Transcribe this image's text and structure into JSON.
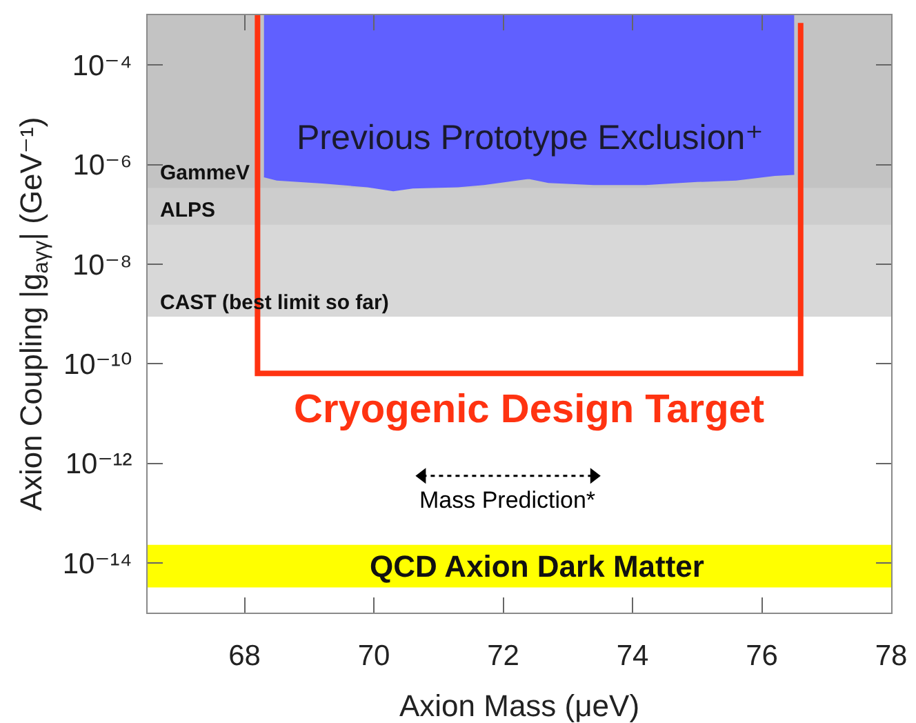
{
  "chart_data": {
    "type": "line",
    "xlabel": "Axion Mass (μeV)",
    "ylabel": "Axion Coupling |g$_{aγγ}$| (GeV⁻¹)",
    "xlim": [
      66.5,
      78
    ],
    "xticks": [
      68,
      70,
      72,
      74,
      76,
      78
    ],
    "ylim": [
      1e-15,
      0.001
    ],
    "yticks": [
      {
        "value": 1e-14,
        "label": "10⁻¹⁴"
      },
      {
        "value": 1e-12,
        "label": "10⁻¹²"
      },
      {
        "value": 1e-10,
        "label": "10⁻¹⁰"
      },
      {
        "value": 1e-08,
        "label": "10⁻⁸"
      },
      {
        "value": 1e-06,
        "label": "10⁻⁶"
      },
      {
        "value": 0.0001,
        "label": "10⁻⁴"
      }
    ],
    "log": "y",
    "bands": [
      {
        "axis": "y",
        "from": 3.4e-07,
        "to": 0.001,
        "label": "GammeV",
        "color": "#c3c3c3"
      },
      {
        "axis": "y",
        "from": 6.2e-08,
        "to": 0.001,
        "label": "ALPS",
        "color": "#cdcdcd"
      },
      {
        "axis": "y",
        "from": 8.8e-10,
        "to": 0.001,
        "label": "CAST (best limit so far)",
        "color": "#d8d8d8"
      },
      {
        "axis": "y",
        "from": 3.2e-15,
        "to": 2.3e-14,
        "label": "QCD Axion Dark Matter",
        "color": "#ffff00"
      }
    ],
    "series": [
      {
        "name": "Previous Prototype Exclusion⁺",
        "color": "#6060ff",
        "x": [
          68.3,
          68.5,
          69.2,
          69.9,
          70.3,
          70.6,
          71.3,
          71.7,
          72.4,
          72.7,
          73.4,
          74.2,
          75.0,
          75.6,
          76.2,
          76.5
        ],
        "values": [
          5.7e-07,
          4.9e-07,
          4.3e-07,
          3.6e-07,
          3e-07,
          3.4e-07,
          3.6e-07,
          4e-07,
          5.3e-07,
          4.4e-07,
          4e-07,
          4e-07,
          4.6e-07,
          4.9e-07,
          6.1e-07,
          6.4e-07
        ],
        "lower": [
          5.7e-07,
          4.9e-07,
          4.3e-07,
          3.6e-07,
          3e-07,
          3.4e-07,
          3.6e-07,
          4e-07,
          5.3e-07,
          4.4e-07,
          4e-07,
          4e-07,
          4.6e-07,
          4.9e-07,
          6.1e-07,
          6.4e-07
        ],
        "upper": [
          0.001,
          0.001,
          0.001,
          0.001,
          0.001,
          0.001,
          0.001,
          0.001,
          0.001,
          0.001,
          0.001,
          0.001,
          0.001,
          0.001,
          0.001,
          0.001
        ]
      },
      {
        "name": "Cryogenic Design Target",
        "color": "#ff3311",
        "x": [
          68.2,
          68.2,
          76.6,
          76.6
        ],
        "values": [
          0.001,
          6.4e-11,
          6.4e-11,
          0.0007
        ]
      },
      {
        "name": "Mass Prediction*",
        "color": "#000000",
        "x": [
          70.75,
          73.4
        ],
        "values": [
          5.6e-13,
          5.6e-13
        ],
        "line_style": "dotted",
        "marker": "triangle"
      }
    ]
  }
}
